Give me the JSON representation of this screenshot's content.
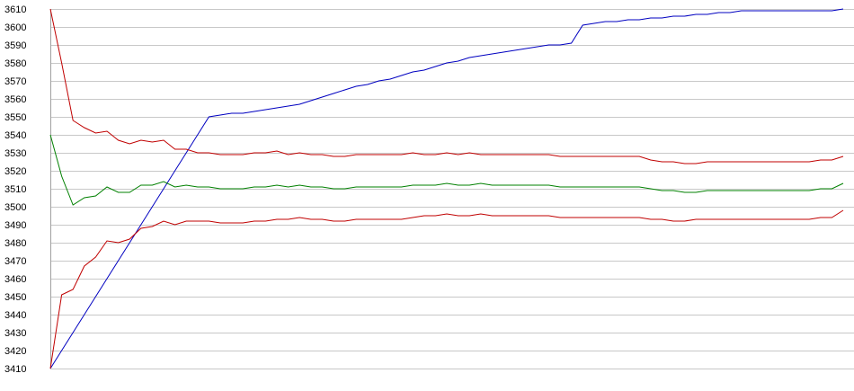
{
  "chart_data": {
    "type": "line",
    "title": "",
    "xlabel": "",
    "ylabel": "",
    "ylim": [
      3410,
      3610
    ],
    "yticks": [
      3410,
      3420,
      3430,
      3440,
      3450,
      3460,
      3470,
      3480,
      3490,
      3500,
      3510,
      3520,
      3530,
      3540,
      3550,
      3560,
      3570,
      3580,
      3590,
      3600,
      3610
    ],
    "grid": true,
    "legend": "none",
    "x": [
      0,
      1,
      2,
      3,
      4,
      5,
      6,
      7,
      8,
      9,
      10,
      11,
      12,
      13,
      14,
      15,
      16,
      17,
      18,
      19,
      20,
      21,
      22,
      23,
      24,
      25,
      26,
      27,
      28,
      29,
      30,
      31,
      32,
      33,
      34,
      35,
      36,
      37,
      38,
      39,
      40,
      41,
      42,
      43,
      44,
      45,
      46,
      47,
      48,
      49,
      50,
      51,
      52,
      53,
      54,
      55,
      56,
      57,
      58,
      59,
      60,
      61,
      62,
      63,
      64,
      65,
      66,
      67,
      68,
      69,
      70
    ],
    "series": [
      {
        "color": "#0000c0",
        "values": [
          3410,
          3420,
          3430,
          3440,
          3450,
          3460,
          3470,
          3480,
          3490,
          3500,
          3510,
          3520,
          3530,
          3540,
          3550,
          3551,
          3552,
          3552,
          3553,
          3554,
          3555,
          3556,
          3557,
          3559,
          3561,
          3563,
          3565,
          3567,
          3568,
          3570,
          3571,
          3573,
          3575,
          3576,
          3578,
          3580,
          3581,
          3583,
          3584,
          3585,
          3586,
          3587,
          3588,
          3589,
          3590,
          3590,
          3591,
          3601,
          3602,
          3603,
          3603,
          3604,
          3604,
          3605,
          3605,
          3606,
          3606,
          3607,
          3607,
          3608,
          3608,
          3609,
          3609,
          3609,
          3609,
          3609,
          3609,
          3609,
          3609,
          3609,
          3610
        ]
      },
      {
        "color": "#c00000",
        "values": [
          3610,
          3580,
          3548,
          3544,
          3541,
          3542,
          3537,
          3535,
          3537,
          3536,
          3537,
          3532,
          3532,
          3530,
          3530,
          3529,
          3529,
          3529,
          3530,
          3530,
          3531,
          3529,
          3530,
          3529,
          3529,
          3528,
          3528,
          3529,
          3529,
          3529,
          3529,
          3529,
          3530,
          3529,
          3529,
          3530,
          3529,
          3530,
          3529,
          3529,
          3529,
          3529,
          3529,
          3529,
          3529,
          3528,
          3528,
          3528,
          3528,
          3528,
          3528,
          3528,
          3528,
          3526,
          3525,
          3525,
          3524,
          3524,
          3525,
          3525,
          3525,
          3525,
          3525,
          3525,
          3525,
          3525,
          3525,
          3525,
          3526,
          3526,
          3528
        ]
      },
      {
        "color": "#008000",
        "values": [
          3540,
          3517,
          3501,
          3505,
          3506,
          3511,
          3508,
          3508,
          3512,
          3512,
          3514,
          3511,
          3512,
          3511,
          3511,
          3510,
          3510,
          3510,
          3511,
          3511,
          3512,
          3511,
          3512,
          3511,
          3511,
          3510,
          3510,
          3511,
          3511,
          3511,
          3511,
          3511,
          3512,
          3512,
          3512,
          3513,
          3512,
          3512,
          3513,
          3512,
          3512,
          3512,
          3512,
          3512,
          3512,
          3511,
          3511,
          3511,
          3511,
          3511,
          3511,
          3511,
          3511,
          3510,
          3509,
          3509,
          3508,
          3508,
          3509,
          3509,
          3509,
          3509,
          3509,
          3509,
          3509,
          3509,
          3509,
          3509,
          3510,
          3510,
          3513
        ]
      },
      {
        "color": "#c00000",
        "values": [
          3410,
          3451,
          3454,
          3467,
          3472,
          3481,
          3480,
          3482,
          3488,
          3489,
          3492,
          3490,
          3492,
          3492,
          3492,
          3491,
          3491,
          3491,
          3492,
          3492,
          3493,
          3493,
          3494,
          3493,
          3493,
          3492,
          3492,
          3493,
          3493,
          3493,
          3493,
          3493,
          3494,
          3495,
          3495,
          3496,
          3495,
          3495,
          3496,
          3495,
          3495,
          3495,
          3495,
          3495,
          3495,
          3494,
          3494,
          3494,
          3494,
          3494,
          3494,
          3494,
          3494,
          3493,
          3493,
          3492,
          3492,
          3493,
          3493,
          3493,
          3493,
          3493,
          3493,
          3493,
          3493,
          3493,
          3493,
          3493,
          3494,
          3494,
          3498
        ]
      }
    ]
  }
}
